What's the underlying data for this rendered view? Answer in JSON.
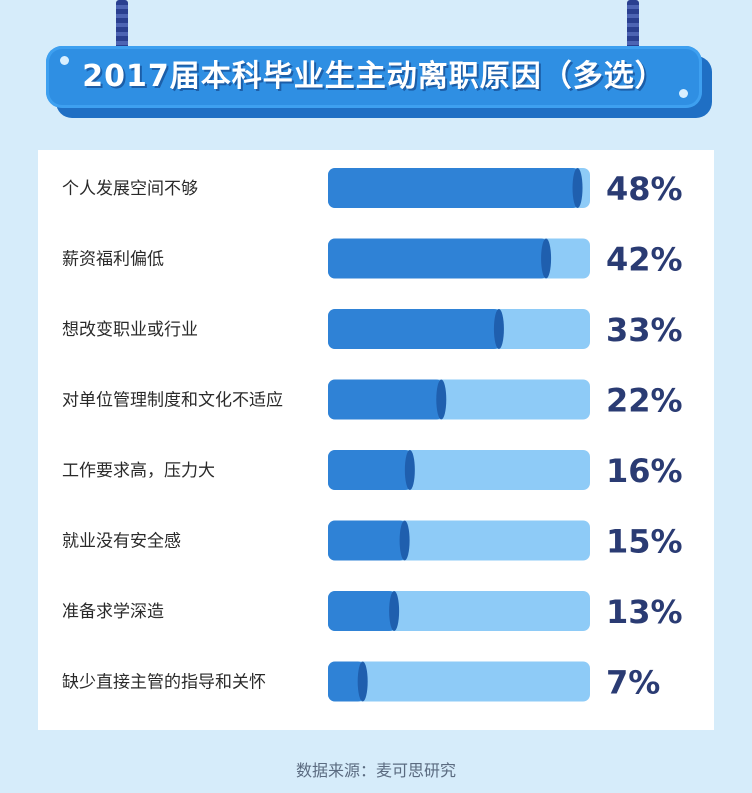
{
  "title": "2017届本科毕业生主动离职原因（多选）",
  "source": "数据来源：麦可思研究",
  "colors": {
    "background": "#d6ecfa",
    "banner": "#2f8fe3",
    "bar_fill": "#2f82d6",
    "bar_track": "#8ecbf7",
    "value_text": "#2a3b73",
    "label_text": "#2a2a2a"
  },
  "chart_data": {
    "type": "bar",
    "orientation": "horizontal",
    "title": "2017届本科毕业生主动离职原因（多选）",
    "categories": [
      "个人发展空间不够",
      "薪资福利偏低",
      "想改变职业或行业",
      "对单位管理制度和文化不适应",
      "工作要求高，压力大",
      "就业没有安全感",
      "准备求学深造",
      "缺少直接主管的指导和关怀"
    ],
    "values": [
      48,
      42,
      33,
      22,
      16,
      15,
      13,
      7
    ],
    "value_labels": [
      "48%",
      "42%",
      "33%",
      "22%",
      "16%",
      "15%",
      "13%",
      "7%"
    ],
    "unit": "%",
    "xlim": [
      0,
      50
    ],
    "grid": false,
    "legend": "none"
  }
}
